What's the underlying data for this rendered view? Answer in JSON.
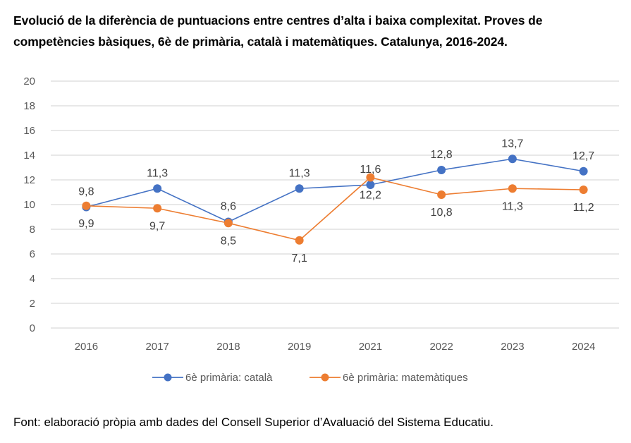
{
  "title": "Evolució de la diferència de puntuacions entre centres d’alta i baixa complexitat. Proves de competències bàsiques, 6è de primària, català i matemàtiques. Catalunya, 2016-2024.",
  "source": "Font: elaboració pròpia amb dades del Consell Superior d’Avaluació del Sistema Educatiu.",
  "chart_data": {
    "type": "line",
    "title": "Evolució de la diferència de puntuacions entre centres d’alta i baixa complexitat. Proves de competències bàsiques, 6è de primària, català i matemàtiques. Catalunya, 2016-2024.",
    "xlabel": "",
    "ylabel": "",
    "categories": [
      "2016",
      "2017",
      "2018",
      "2019",
      "2021",
      "2022",
      "2023",
      "2024"
    ],
    "ylim": [
      0,
      20
    ],
    "yticks": [
      0,
      2,
      4,
      6,
      8,
      10,
      12,
      14,
      16,
      18,
      20
    ],
    "grid": true,
    "legend_position": "bottom",
    "decimal_separator": ",",
    "series": [
      {
        "name": "6è primària: català",
        "color": "#4472C4",
        "values": [
          9.8,
          11.3,
          8.6,
          11.3,
          11.6,
          12.8,
          13.7,
          12.7
        ],
        "label_position": [
          "above",
          "above",
          "above",
          "above",
          "above",
          "above",
          "above",
          "above"
        ]
      },
      {
        "name": "6è primària: matemàtiques",
        "color": "#ED7D31",
        "values": [
          9.9,
          9.7,
          8.5,
          7.1,
          12.2,
          10.8,
          11.3,
          11.2
        ],
        "label_position": [
          "below",
          "below",
          "below",
          "below",
          "below",
          "below",
          "below",
          "below"
        ]
      }
    ]
  }
}
